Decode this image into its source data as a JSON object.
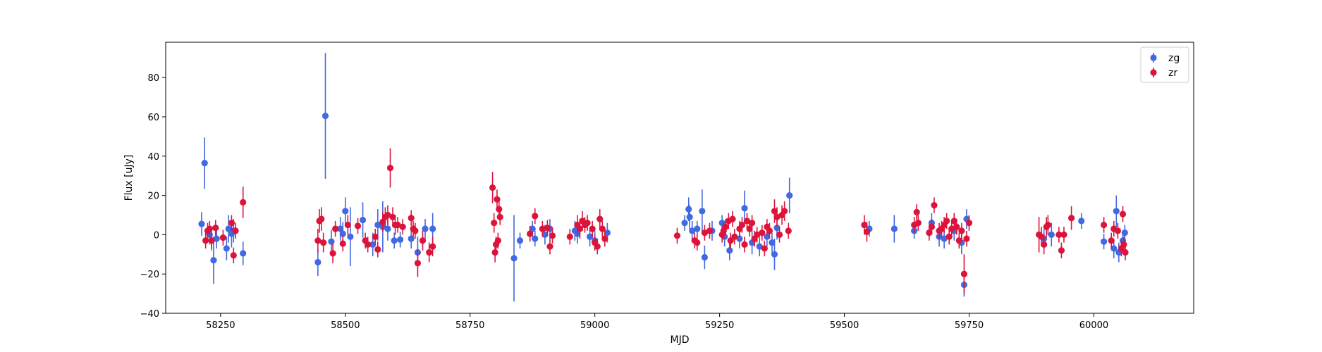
{
  "chart_data": {
    "type": "scatter",
    "xlabel": "MJD",
    "ylabel": "Flux [uJy]",
    "xlim": [
      58140,
      60200
    ],
    "ylim": [
      -40,
      98
    ],
    "x_ticks": [
      58250,
      58500,
      58750,
      59000,
      59250,
      59500,
      59750,
      60000
    ],
    "y_ticks": [
      -40,
      -20,
      0,
      20,
      40,
      60,
      80
    ],
    "grid": false,
    "legend_position": "top-right",
    "series": [
      {
        "name": "zg",
        "color": "#4169e1",
        "points": [
          {
            "x": 58212,
            "y": 5.5,
            "err": 6
          },
          {
            "x": 58218,
            "y": 36.5,
            "err": 13
          },
          {
            "x": 58228,
            "y": 0,
            "err": 5
          },
          {
            "x": 58232,
            "y": -3,
            "err": 5
          },
          {
            "x": 58236,
            "y": -13,
            "err": 12
          },
          {
            "x": 58242,
            "y": -2,
            "err": 5
          },
          {
            "x": 58262,
            "y": -7,
            "err": 6
          },
          {
            "x": 58266,
            "y": 3,
            "err": 7
          },
          {
            "x": 58272,
            "y": 0.5,
            "err": 7
          },
          {
            "x": 58276,
            "y": 2,
            "err": 6
          },
          {
            "x": 58295,
            "y": -9.5,
            "err": 6
          },
          {
            "x": 58445,
            "y": -14,
            "err": 7
          },
          {
            "x": 58460,
            "y": 60.5,
            "err": 32
          },
          {
            "x": 58472,
            "y": -3.5,
            "err": 6
          },
          {
            "x": 58490,
            "y": 3,
            "err": 6
          },
          {
            "x": 58495,
            "y": 0.5,
            "err": 6
          },
          {
            "x": 58500,
            "y": 12,
            "err": 7
          },
          {
            "x": 58510,
            "y": -1,
            "err": 15
          },
          {
            "x": 58535,
            "y": 7.5,
            "err": 9
          },
          {
            "x": 58555,
            "y": -5,
            "err": 6
          },
          {
            "x": 58565,
            "y": 5,
            "err": 8
          },
          {
            "x": 58575,
            "y": 4,
            "err": 13
          },
          {
            "x": 58585,
            "y": 3,
            "err": 6
          },
          {
            "x": 58598,
            "y": -3,
            "err": 4
          },
          {
            "x": 58610,
            "y": -2.5,
            "err": 4
          },
          {
            "x": 58632,
            "y": -2,
            "err": 5
          },
          {
            "x": 58645,
            "y": -9,
            "err": 8
          },
          {
            "x": 58660,
            "y": 3,
            "err": 5
          },
          {
            "x": 58675,
            "y": 3,
            "err": 8
          },
          {
            "x": 58838,
            "y": -12,
            "err": 22
          },
          {
            "x": 58850,
            "y": -3,
            "err": 4
          },
          {
            "x": 58875,
            "y": 3,
            "err": 4
          },
          {
            "x": 58880,
            "y": -2,
            "err": 4
          },
          {
            "x": 58900,
            "y": 0,
            "err": 5
          },
          {
            "x": 58910,
            "y": 3,
            "err": 5
          },
          {
            "x": 58960,
            "y": 2,
            "err": 5
          },
          {
            "x": 58965,
            "y": 0.5,
            "err": 5
          },
          {
            "x": 58990,
            "y": -1,
            "err": 5
          },
          {
            "x": 59000,
            "y": -3,
            "err": 5
          },
          {
            "x": 59025,
            "y": 1,
            "err": 5
          },
          {
            "x": 59180,
            "y": 6,
            "err": 4
          },
          {
            "x": 59188,
            "y": 13,
            "err": 6
          },
          {
            "x": 59190,
            "y": 9,
            "err": 6
          },
          {
            "x": 59195,
            "y": 2,
            "err": 5
          },
          {
            "x": 59205,
            "y": 3,
            "err": 4
          },
          {
            "x": 59215,
            "y": 12,
            "err": 11
          },
          {
            "x": 59220,
            "y": -11.5,
            "err": 6
          },
          {
            "x": 59235,
            "y": 2,
            "err": 5
          },
          {
            "x": 59255,
            "y": 6,
            "err": 4
          },
          {
            "x": 59260,
            "y": -1,
            "err": 5
          },
          {
            "x": 59270,
            "y": -8,
            "err": 5
          },
          {
            "x": 59290,
            "y": -2,
            "err": 5
          },
          {
            "x": 59300,
            "y": 13.5,
            "err": 9
          },
          {
            "x": 59315,
            "y": -4,
            "err": 6
          },
          {
            "x": 59330,
            "y": -6,
            "err": 5
          },
          {
            "x": 59345,
            "y": -1,
            "err": 5
          },
          {
            "x": 59355,
            "y": -4,
            "err": 5
          },
          {
            "x": 59360,
            "y": -10,
            "err": 8
          },
          {
            "x": 59365,
            "y": 3.5,
            "err": 6
          },
          {
            "x": 59390,
            "y": 20,
            "err": 9
          },
          {
            "x": 59550,
            "y": 3,
            "err": 4
          },
          {
            "x": 59600,
            "y": 3,
            "err": 7
          },
          {
            "x": 59640,
            "y": 2,
            "err": 4
          },
          {
            "x": 59675,
            "y": 6,
            "err": 5
          },
          {
            "x": 59690,
            "y": -1,
            "err": 5
          },
          {
            "x": 59700,
            "y": -2,
            "err": 5
          },
          {
            "x": 59720,
            "y": 2,
            "err": 5
          },
          {
            "x": 59735,
            "y": -4,
            "err": 6
          },
          {
            "x": 59740,
            "y": -25.5,
            "err": 6
          },
          {
            "x": 59745,
            "y": 8,
            "err": 5
          },
          {
            "x": 59900,
            "y": -2,
            "err": 5
          },
          {
            "x": 59915,
            "y": 0,
            "err": 6
          },
          {
            "x": 59975,
            "y": 7,
            "err": 4
          },
          {
            "x": 60020,
            "y": -3.5,
            "err": 4
          },
          {
            "x": 60040,
            "y": -7,
            "err": 5
          },
          {
            "x": 60045,
            "y": 12,
            "err": 8
          },
          {
            "x": 60050,
            "y": -9,
            "err": 5
          },
          {
            "x": 60058,
            "y": -3,
            "err": 4
          },
          {
            "x": 60062,
            "y": 1,
            "err": 4
          }
        ]
      },
      {
        "name": "zr",
        "color": "#dc143c",
        "points": [
          {
            "x": 58220,
            "y": -3,
            "err": 4
          },
          {
            "x": 58224,
            "y": 2,
            "err": 4
          },
          {
            "x": 58228,
            "y": 3,
            "err": 4
          },
          {
            "x": 58232,
            "y": -3,
            "err": 4
          },
          {
            "x": 58240,
            "y": 3.5,
            "err": 4
          },
          {
            "x": 58255,
            "y": -1.5,
            "err": 4
          },
          {
            "x": 58272,
            "y": 6,
            "err": 4
          },
          {
            "x": 58276,
            "y": -10.5,
            "err": 4
          },
          {
            "x": 58280,
            "y": 2,
            "err": 4
          },
          {
            "x": 58295,
            "y": 16.5,
            "err": 8
          },
          {
            "x": 58445,
            "y": -3,
            "err": 6
          },
          {
            "x": 58448,
            "y": 7,
            "err": 6
          },
          {
            "x": 58452,
            "y": 8,
            "err": 6
          },
          {
            "x": 58456,
            "y": -4,
            "err": 5
          },
          {
            "x": 58475,
            "y": -9.5,
            "err": 5
          },
          {
            "x": 58480,
            "y": 3,
            "err": 4
          },
          {
            "x": 58495,
            "y": -4.5,
            "err": 4
          },
          {
            "x": 58505,
            "y": 5,
            "err": 5
          },
          {
            "x": 58525,
            "y": 4.5,
            "err": 4
          },
          {
            "x": 58540,
            "y": -3,
            "err": 4
          },
          {
            "x": 58545,
            "y": -5,
            "err": 4
          },
          {
            "x": 58560,
            "y": -1,
            "err": 4
          },
          {
            "x": 58565,
            "y": -7.5,
            "err": 4
          },
          {
            "x": 58575,
            "y": 6.5,
            "err": 5
          },
          {
            "x": 58580,
            "y": 9,
            "err": 5
          },
          {
            "x": 58585,
            "y": 10,
            "err": 5
          },
          {
            "x": 58590,
            "y": 34,
            "err": 10
          },
          {
            "x": 58595,
            "y": 9,
            "err": 5
          },
          {
            "x": 58600,
            "y": 5,
            "err": 5
          },
          {
            "x": 58605,
            "y": 5,
            "err": 4
          },
          {
            "x": 58615,
            "y": 4,
            "err": 4
          },
          {
            "x": 58632,
            "y": 8.5,
            "err": 4
          },
          {
            "x": 58636,
            "y": 3,
            "err": 4
          },
          {
            "x": 58640,
            "y": 2,
            "err": 4
          },
          {
            "x": 58645,
            "y": -14.5,
            "err": 7
          },
          {
            "x": 58655,
            "y": -3,
            "err": 5
          },
          {
            "x": 58668,
            "y": -9,
            "err": 5
          },
          {
            "x": 58675,
            "y": -6,
            "err": 5
          },
          {
            "x": 58795,
            "y": 24,
            "err": 8
          },
          {
            "x": 58798,
            "y": 6,
            "err": 5
          },
          {
            "x": 58800,
            "y": -9,
            "err": 5
          },
          {
            "x": 58802,
            "y": -5,
            "err": 4
          },
          {
            "x": 58804,
            "y": 18,
            "err": 5
          },
          {
            "x": 58806,
            "y": -3,
            "err": 4
          },
          {
            "x": 58808,
            "y": 13,
            "err": 5
          },
          {
            "x": 58810,
            "y": 9,
            "err": 4
          },
          {
            "x": 58870,
            "y": 0.5,
            "err": 4
          },
          {
            "x": 58880,
            "y": 9.5,
            "err": 4
          },
          {
            "x": 58895,
            "y": 3,
            "err": 4
          },
          {
            "x": 58905,
            "y": 3.5,
            "err": 4
          },
          {
            "x": 58910,
            "y": -6,
            "err": 4
          },
          {
            "x": 58915,
            "y": -0.5,
            "err": 4
          },
          {
            "x": 58950,
            "y": -1,
            "err": 4
          },
          {
            "x": 58965,
            "y": 5,
            "err": 5
          },
          {
            "x": 58970,
            "y": 3,
            "err": 5
          },
          {
            "x": 58975,
            "y": 7,
            "err": 5
          },
          {
            "x": 58980,
            "y": 5,
            "err": 4
          },
          {
            "x": 58985,
            "y": 6,
            "err": 4
          },
          {
            "x": 58995,
            "y": 3,
            "err": 4
          },
          {
            "x": 59000,
            "y": -4,
            "err": 4
          },
          {
            "x": 59005,
            "y": -6,
            "err": 4
          },
          {
            "x": 59010,
            "y": 8,
            "err": 5
          },
          {
            "x": 59015,
            "y": 3,
            "err": 4
          },
          {
            "x": 59020,
            "y": -2,
            "err": 4
          },
          {
            "x": 59165,
            "y": -0.5,
            "err": 4
          },
          {
            "x": 59200,
            "y": -3,
            "err": 4
          },
          {
            "x": 59205,
            "y": -4,
            "err": 4
          },
          {
            "x": 59220,
            "y": 1,
            "err": 4
          },
          {
            "x": 59230,
            "y": 2,
            "err": 4
          },
          {
            "x": 59255,
            "y": 0,
            "err": 4
          },
          {
            "x": 59258,
            "y": 2,
            "err": 4
          },
          {
            "x": 59262,
            "y": 4,
            "err": 4
          },
          {
            "x": 59268,
            "y": 7,
            "err": 4
          },
          {
            "x": 59272,
            "y": -3,
            "err": 4
          },
          {
            "x": 59276,
            "y": 8,
            "err": 4
          },
          {
            "x": 59280,
            "y": -1,
            "err": 4
          },
          {
            "x": 59290,
            "y": 3,
            "err": 4
          },
          {
            "x": 59295,
            "y": 5,
            "err": 4
          },
          {
            "x": 59300,
            "y": -5,
            "err": 4
          },
          {
            "x": 59305,
            "y": 7,
            "err": 4
          },
          {
            "x": 59310,
            "y": 3,
            "err": 4
          },
          {
            "x": 59315,
            "y": 6,
            "err": 4
          },
          {
            "x": 59320,
            "y": -2,
            "err": 4
          },
          {
            "x": 59325,
            "y": 0,
            "err": 4
          },
          {
            "x": 59335,
            "y": 1,
            "err": 4
          },
          {
            "x": 59340,
            "y": -7,
            "err": 4
          },
          {
            "x": 59345,
            "y": 4,
            "err": 4
          },
          {
            "x": 59350,
            "y": 2,
            "err": 4
          },
          {
            "x": 59360,
            "y": 12,
            "err": 6
          },
          {
            "x": 59365,
            "y": 9,
            "err": 5
          },
          {
            "x": 59370,
            "y": 0,
            "err": 4
          },
          {
            "x": 59375,
            "y": 10,
            "err": 5
          },
          {
            "x": 59380,
            "y": 12,
            "err": 5
          },
          {
            "x": 59388,
            "y": 2,
            "err": 4
          },
          {
            "x": 59540,
            "y": 5,
            "err": 5
          },
          {
            "x": 59545,
            "y": 1.5,
            "err": 5
          },
          {
            "x": 59640,
            "y": 5,
            "err": 4
          },
          {
            "x": 59645,
            "y": 11.5,
            "err": 4
          },
          {
            "x": 59648,
            "y": 6,
            "err": 4
          },
          {
            "x": 59670,
            "y": 1,
            "err": 4
          },
          {
            "x": 59675,
            "y": 4,
            "err": 4
          },
          {
            "x": 59680,
            "y": 15,
            "err": 4
          },
          {
            "x": 59690,
            "y": 2,
            "err": 4
          },
          {
            "x": 59695,
            "y": 3,
            "err": 4
          },
          {
            "x": 59700,
            "y": 5,
            "err": 4
          },
          {
            "x": 59705,
            "y": 7,
            "err": 4
          },
          {
            "x": 59710,
            "y": -1,
            "err": 4
          },
          {
            "x": 59715,
            "y": 3,
            "err": 4
          },
          {
            "x": 59720,
            "y": 7,
            "err": 4
          },
          {
            "x": 59725,
            "y": 4,
            "err": 4
          },
          {
            "x": 59730,
            "y": -3,
            "err": 4
          },
          {
            "x": 59735,
            "y": 2,
            "err": 4
          },
          {
            "x": 59740,
            "y": -20,
            "err": 10
          },
          {
            "x": 59745,
            "y": -2,
            "err": 4
          },
          {
            "x": 59750,
            "y": 6,
            "err": 4
          },
          {
            "x": 59890,
            "y": 0,
            "err": 9
          },
          {
            "x": 59895,
            "y": -1,
            "err": 5
          },
          {
            "x": 59900,
            "y": -5,
            "err": 5
          },
          {
            "x": 59905,
            "y": 4,
            "err": 5
          },
          {
            "x": 59908,
            "y": 5,
            "err": 5
          },
          {
            "x": 59930,
            "y": 0,
            "err": 4
          },
          {
            "x": 59935,
            "y": -8,
            "err": 4
          },
          {
            "x": 59940,
            "y": 0,
            "err": 4
          },
          {
            "x": 59955,
            "y": 8.5,
            "err": 6
          },
          {
            "x": 60020,
            "y": 5,
            "err": 4
          },
          {
            "x": 60035,
            "y": -3,
            "err": 4
          },
          {
            "x": 60040,
            "y": 3,
            "err": 4
          },
          {
            "x": 60048,
            "y": 2,
            "err": 4
          },
          {
            "x": 60055,
            "y": -7,
            "err": 4
          },
          {
            "x": 60058,
            "y": 10.5,
            "err": 4
          },
          {
            "x": 60060,
            "y": -5,
            "err": 4
          },
          {
            "x": 60063,
            "y": -9,
            "err": 4
          }
        ]
      }
    ]
  }
}
